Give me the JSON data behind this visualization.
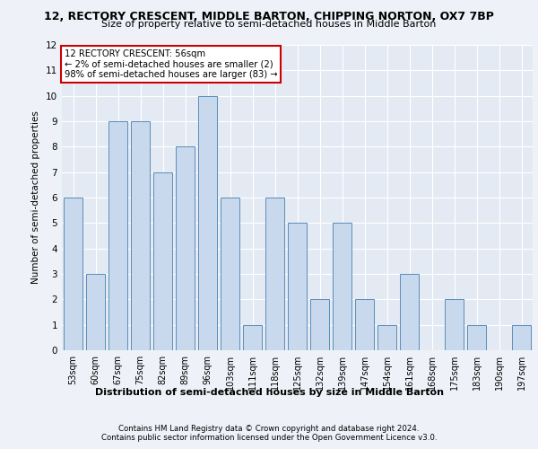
{
  "title1": "12, RECTORY CRESCENT, MIDDLE BARTON, CHIPPING NORTON, OX7 7BP",
  "title2": "Size of property relative to semi-detached houses in Middle Barton",
  "xlabel_bottom": "Distribution of semi-detached houses by size in Middle Barton",
  "ylabel": "Number of semi-detached properties",
  "categories": [
    "53sqm",
    "60sqm",
    "67sqm",
    "75sqm",
    "82sqm",
    "89sqm",
    "96sqm",
    "103sqm",
    "111sqm",
    "118sqm",
    "125sqm",
    "132sqm",
    "139sqm",
    "147sqm",
    "154sqm",
    "161sqm",
    "168sqm",
    "175sqm",
    "183sqm",
    "190sqm",
    "197sqm"
  ],
  "values": [
    6,
    3,
    9,
    9,
    7,
    8,
    10,
    6,
    1,
    6,
    5,
    2,
    5,
    2,
    1,
    3,
    0,
    2,
    1,
    0,
    1
  ],
  "bar_color": "#c9d9ed",
  "bar_edge_color": "#5b8db8",
  "annotation_title": "12 RECTORY CRESCENT: 56sqm",
  "annotation_line1": "← 2% of semi-detached houses are smaller (2)",
  "annotation_line2": "98% of semi-detached houses are larger (83) →",
  "annotation_box_color": "#ffffff",
  "annotation_border_color": "#cc0000",
  "ylim": [
    0,
    12
  ],
  "yticks": [
    0,
    1,
    2,
    3,
    4,
    5,
    6,
    7,
    8,
    9,
    10,
    11,
    12
  ],
  "footnote1": "Contains HM Land Registry data © Crown copyright and database right 2024.",
  "footnote2": "Contains public sector information licensed under the Open Government Licence v3.0.",
  "bg_color": "#eef2f8",
  "plot_bg_color": "#e4eaf4"
}
